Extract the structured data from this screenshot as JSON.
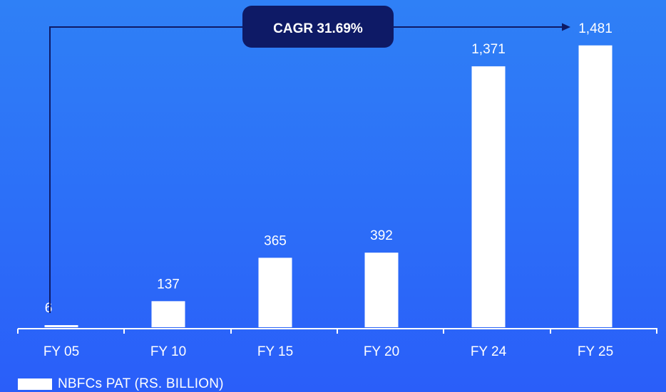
{
  "chart_data": {
    "type": "bar",
    "categories": [
      "FY 05",
      "FY 10",
      "FY 15",
      "FY 20",
      "FY 24",
      "FY 25"
    ],
    "series": [
      {
        "name": "NBFCs PAT (RS. BILLION)",
        "values": [
          6,
          137,
          365,
          392,
          1371,
          1481
        ]
      }
    ],
    "value_labels": [
      "6",
      "137",
      "365",
      "392",
      "1,371",
      "1,481"
    ],
    "ylim": [
      0,
      1600
    ],
    "grid": false,
    "legend_position": "bottom-left",
    "annotation": "CAGR 31.69%",
    "colors": {
      "bar": "#FFFFFF",
      "annotation_box": "#0E1A66",
      "arrow": "#0E1A66",
      "axis": "#FFFFFF"
    }
  }
}
